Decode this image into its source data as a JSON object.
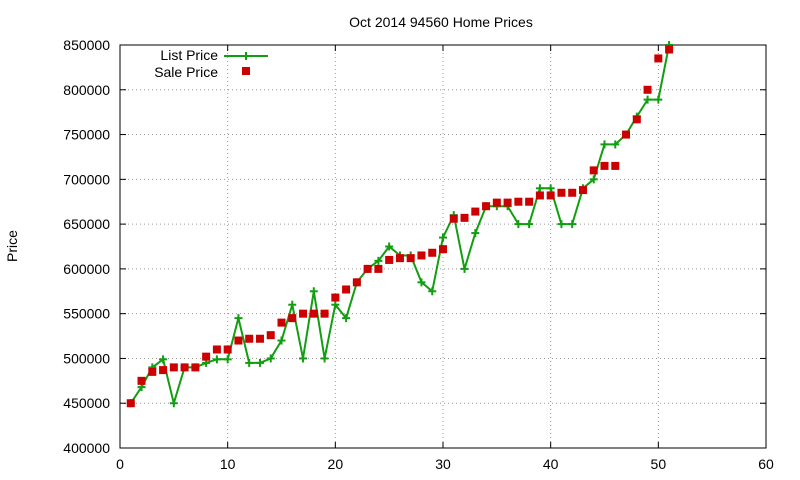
{
  "chart_data": {
    "type": "line",
    "title": "Oct 2014 94560 Home Prices",
    "xlabel": "",
    "ylabel": "Price",
    "xlim": [
      0,
      60
    ],
    "ylim": [
      400000,
      850000
    ],
    "xticks": [
      0,
      10,
      20,
      30,
      40,
      50,
      60
    ],
    "yticks": [
      400000,
      450000,
      500000,
      550000,
      600000,
      650000,
      700000,
      750000,
      800000,
      850000
    ],
    "grid": true,
    "legend_position": "top-left",
    "series": [
      {
        "name": "List Price",
        "style": "line+cross",
        "color": "#119e11",
        "x": [
          1,
          2,
          3,
          4,
          5,
          6,
          7,
          8,
          9,
          10,
          11,
          12,
          13,
          14,
          15,
          16,
          17,
          18,
          19,
          20,
          21,
          22,
          23,
          24,
          25,
          26,
          27,
          28,
          29,
          30,
          31,
          32,
          33,
          34,
          35,
          36,
          37,
          38,
          39,
          40,
          41,
          42,
          43,
          44,
          45,
          46,
          47,
          48,
          49,
          50,
          51
        ],
        "y": [
          450000,
          468000,
          490000,
          499000,
          450000,
          490000,
          490000,
          495000,
          499000,
          499000,
          545000,
          495000,
          495000,
          500000,
          520000,
          560000,
          500000,
          575000,
          500000,
          560000,
          545000,
          585000,
          600000,
          609000,
          625000,
          615000,
          615000,
          585000,
          575000,
          635000,
          660000,
          600000,
          640000,
          670000,
          670000,
          670000,
          650000,
          650000,
          690000,
          690000,
          650000,
          650000,
          690000,
          700000,
          739000,
          739000,
          750000,
          770000,
          789000,
          789000,
          850000
        ]
      },
      {
        "name": "Sale Price",
        "style": "square",
        "color": "#cc0000",
        "x": [
          1,
          2,
          3,
          4,
          5,
          6,
          7,
          8,
          9,
          10,
          11,
          12,
          13,
          14,
          15,
          16,
          17,
          18,
          19,
          20,
          21,
          22,
          23,
          24,
          25,
          26,
          27,
          28,
          29,
          30,
          31,
          32,
          33,
          34,
          35,
          36,
          37,
          38,
          39,
          40,
          41,
          42,
          43,
          44,
          45,
          46,
          47,
          48,
          49,
          50,
          51
        ],
        "y": [
          450000,
          475000,
          485000,
          487000,
          490000,
          490000,
          490000,
          502000,
          510000,
          510000,
          520000,
          522000,
          522000,
          526000,
          540000,
          545000,
          550000,
          550000,
          550000,
          568000,
          577000,
          585000,
          600000,
          600000,
          610000,
          612000,
          612000,
          615000,
          618000,
          622000,
          656000,
          657000,
          664000,
          670000,
          674000,
          674000,
          675000,
          675000,
          682000,
          682000,
          685000,
          685000,
          688000,
          710000,
          715000,
          715000,
          750000,
          767000,
          800000,
          835000,
          845000
        ]
      }
    ]
  }
}
